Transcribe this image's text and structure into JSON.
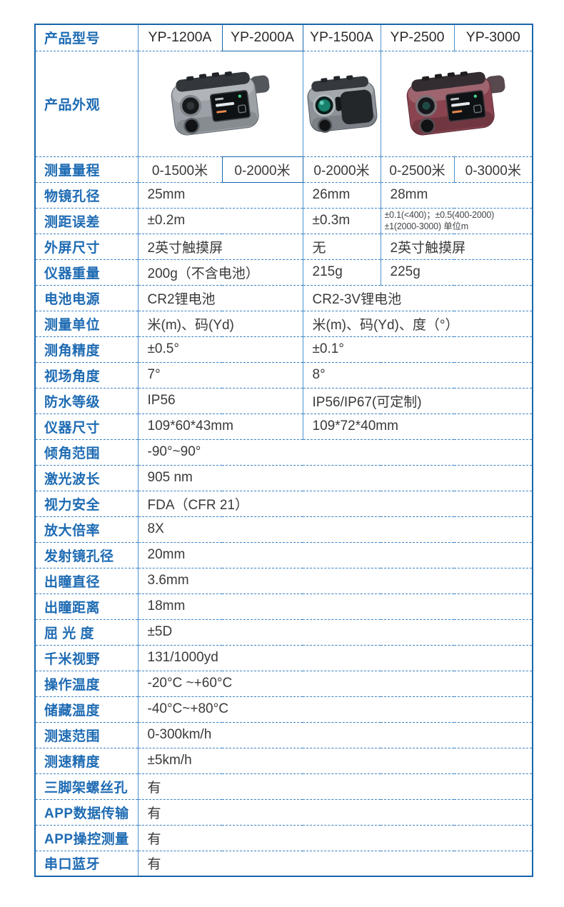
{
  "page": {
    "background": "#ffffff"
  },
  "colors": {
    "label_text": "#1e6bb3",
    "table_border": "#1766ad",
    "vertical_line": "#4d92cc",
    "dashed_line": "#3b83c4",
    "value_text": "#3a3a3a",
    "model_text": "#2b2b2b"
  },
  "table": {
    "header_label": "产品型号",
    "models": [
      "YP-1200A",
      "YP-2000A",
      "YP-1500A",
      "YP-2500",
      "YP-3000"
    ],
    "appearance": {
      "label": "产品外观",
      "images": [
        {
          "name": "rangefinder-silver",
          "desc": "银灰色激光测距仪（带触摸屏）",
          "body_color": "#9ba1a7"
        },
        {
          "name": "rangefinder-gray",
          "desc": "灰色激光测距仪（侧面镜头视图）",
          "body_color": "#8d9399"
        },
        {
          "name": "rangefinder-red",
          "desc": "暗红色激光测距仪（带触摸屏）",
          "body_color": "#8a4450"
        }
      ]
    },
    "rows": [
      {
        "key": "range",
        "label": "测量量程",
        "center": true,
        "cells": [
          {
            "t": "0-1500米",
            "span": 1
          },
          {
            "t": "0-2000米",
            "span": 1,
            "hl": true
          },
          {
            "t": "0-2000米",
            "span": 1
          },
          {
            "t": "0-2500米",
            "span": 1
          },
          {
            "t": "0-3000米",
            "span": 1
          }
        ]
      },
      {
        "key": "objective-aperture",
        "label": "物镜孔径",
        "cells": [
          {
            "t": "25mm",
            "span": 2
          },
          {
            "t": "26mm",
            "span": 1
          },
          {
            "t": "28mm",
            "span": 2
          }
        ]
      },
      {
        "key": "distance-accuracy",
        "label": "测距误差",
        "cells": [
          {
            "t": "±0.2m",
            "span": 2
          },
          {
            "t": "±0.3m",
            "span": 1
          },
          {
            "t": "±0.1(<400)；±0.5(400-2000)",
            "t2": "±1(2000-3000) 单位m",
            "span": 2,
            "small": true
          }
        ]
      },
      {
        "key": "outer-screen",
        "label": "外屏尺寸",
        "cells": [
          {
            "t": "2英寸触摸屏",
            "span": 2
          },
          {
            "t": "无",
            "span": 1
          },
          {
            "t": "2英寸触摸屏",
            "span": 2
          }
        ]
      },
      {
        "key": "weight",
        "label": "仪器重量",
        "cells": [
          {
            "t": "200g（不含电池）",
            "span": 2
          },
          {
            "t": "215g",
            "span": 1
          },
          {
            "t": "225g",
            "span": 2
          }
        ]
      },
      {
        "key": "battery",
        "label": "电池电源",
        "cells": [
          {
            "t": "CR2锂电池",
            "span": 2
          },
          {
            "t": "CR2-3V锂电池",
            "span": 3
          }
        ]
      },
      {
        "key": "units",
        "label": "测量单位",
        "cells": [
          {
            "t": "米(m)、码(Yd)",
            "span": 2
          },
          {
            "t": "米(m)、码(Yd)、度（°）",
            "span": 3
          }
        ]
      },
      {
        "key": "angle-accuracy",
        "label": "测角精度",
        "cells": [
          {
            "t": "±0.5°",
            "span": 2
          },
          {
            "t": "±0.1°",
            "span": 3
          }
        ]
      },
      {
        "key": "field-angle",
        "label": "视场角度",
        "cells": [
          {
            "t": "7°",
            "span": 2
          },
          {
            "t": "8°",
            "span": 3
          }
        ]
      },
      {
        "key": "waterproof",
        "label": "防水等级",
        "cells": [
          {
            "t": "IP56",
            "span": 2
          },
          {
            "t": "IP56/IP67(可定制)",
            "span": 3
          }
        ]
      },
      {
        "key": "dimensions",
        "label": "仪器尺寸",
        "cells": [
          {
            "t": "109*60*43mm",
            "span": 2
          },
          {
            "t": "109*72*40mm",
            "span": 3
          }
        ]
      },
      {
        "key": "tilt-range",
        "label": "倾角范围",
        "cells": [
          {
            "t": "-90°~90°",
            "span": 5
          }
        ]
      },
      {
        "key": "laser-wavelength",
        "label": "激光波长",
        "cells": [
          {
            "t": "905 nm",
            "span": 5
          }
        ]
      },
      {
        "key": "eye-safety",
        "label": "视力安全",
        "cells": [
          {
            "t": "FDA（CFR 21）",
            "span": 5
          }
        ]
      },
      {
        "key": "magnification",
        "label": "放大倍率",
        "cells": [
          {
            "t": "8X",
            "span": 5
          }
        ]
      },
      {
        "key": "transmitter-aperture",
        "label": "发射镜孔径",
        "cells": [
          {
            "t": "20mm",
            "span": 5
          }
        ]
      },
      {
        "key": "exit-pupil-diameter",
        "label": "出瞳直径",
        "cells": [
          {
            "t": "3.6mm",
            "span": 5
          }
        ]
      },
      {
        "key": "eye-relief",
        "label": "出瞳距离",
        "cells": [
          {
            "t": "18mm",
            "span": 5
          }
        ]
      },
      {
        "key": "diopter",
        "label": "屈 光 度",
        "cells": [
          {
            "t": "±5D",
            "span": 5
          }
        ]
      },
      {
        "key": "field-at-1000yd",
        "label": "千米视野",
        "cells": [
          {
            "t": "131/1000yd",
            "span": 5
          }
        ]
      },
      {
        "key": "operating-temp",
        "label": "操作温度",
        "cells": [
          {
            "t": "-20°C ~+60°C",
            "span": 5
          }
        ]
      },
      {
        "key": "storage-temp",
        "label": "储藏温度",
        "cells": [
          {
            "t": " -40°C~+80°C",
            "span": 5
          }
        ]
      },
      {
        "key": "speed-range",
        "label": "测速范围",
        "cells": [
          {
            "t": "0-300km/h",
            "span": 5
          }
        ]
      },
      {
        "key": "speed-accuracy",
        "label": "测速精度",
        "cells": [
          {
            "t": " ±5km/h",
            "span": 5
          }
        ]
      },
      {
        "key": "tripod-hole",
        "label": "三脚架螺丝孔",
        "cells": [
          {
            "t": "有",
            "span": 5
          }
        ]
      },
      {
        "key": "app-data-transfer",
        "label": "APP数据传输",
        "cells": [
          {
            "t": "有",
            "span": 5
          }
        ]
      },
      {
        "key": "app-control",
        "label": "APP操控测量",
        "cells": [
          {
            "t": "有",
            "span": 5
          }
        ]
      },
      {
        "key": "serial-bluetooth",
        "label": "串口蓝牙",
        "cells": [
          {
            "t": "有",
            "span": 5
          }
        ]
      }
    ]
  }
}
